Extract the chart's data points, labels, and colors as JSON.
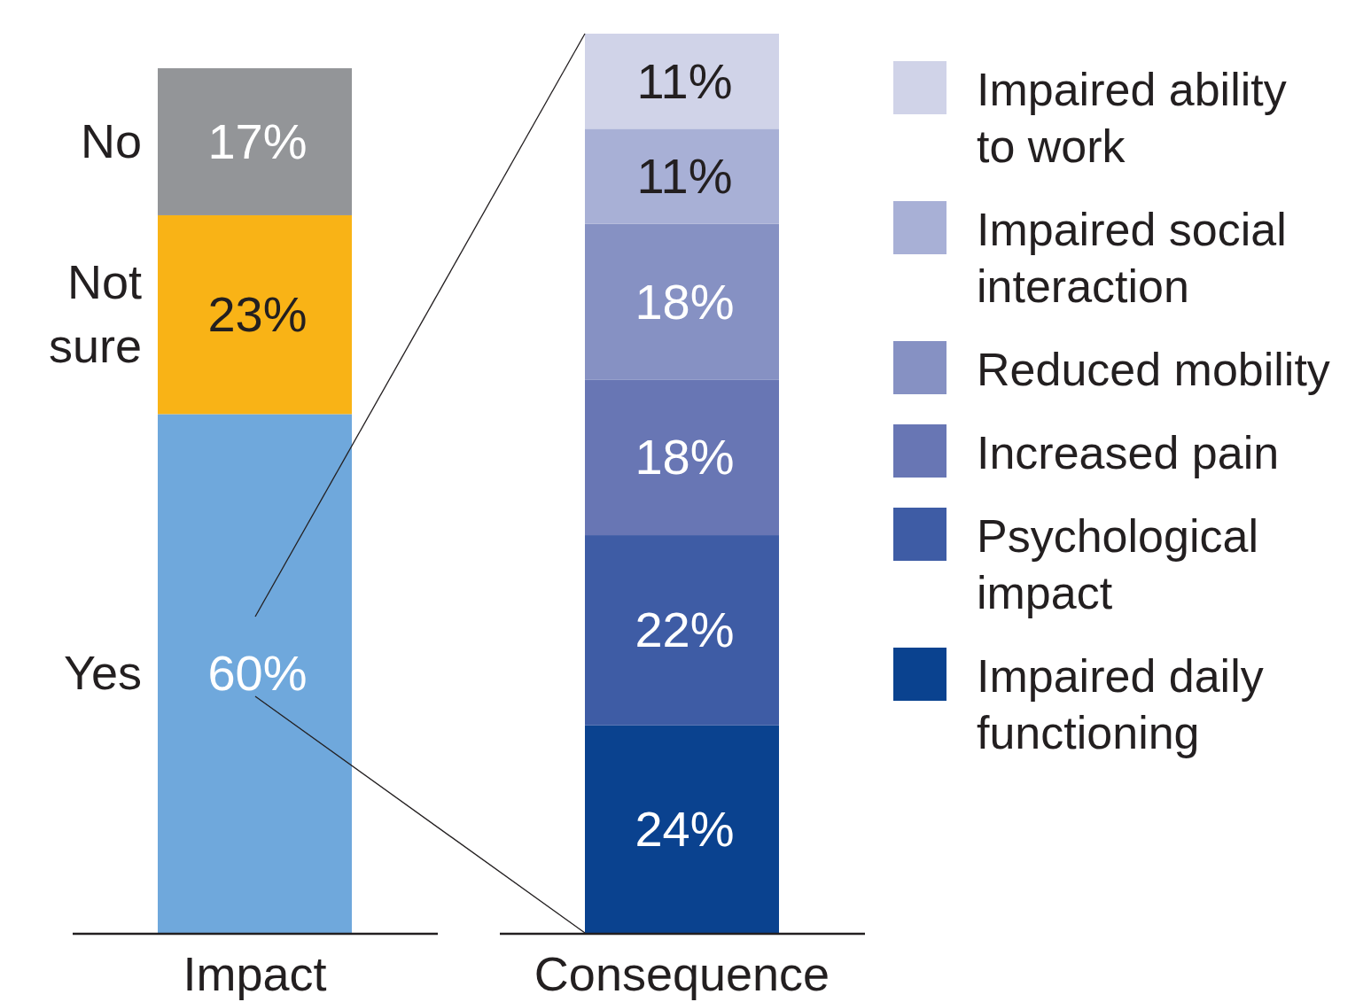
{
  "chart_data": {
    "type": "bar",
    "stacked": true,
    "categories": [
      "Impact",
      "Consequence"
    ],
    "legend": "right",
    "series": [
      {
        "name": "Yes",
        "color": "#6fa8dc",
        "values": [
          60,
          null
        ],
        "value_labels": [
          "60%",
          null
        ]
      },
      {
        "name": "Not sure",
        "color": "#f9b316",
        "values": [
          23,
          null
        ],
        "value_labels": [
          "23%",
          null
        ]
      },
      {
        "name": "No",
        "color": "#939598",
        "values": [
          17,
          null
        ],
        "value_labels": [
          "17%",
          null
        ]
      },
      {
        "name": "Impaired daily functioning",
        "color": "#0a428f",
        "values": [
          null,
          24
        ],
        "value_labels": [
          null,
          "24%"
        ]
      },
      {
        "name": "Psychological impact",
        "color": "#3e5ca5",
        "values": [
          null,
          22
        ],
        "value_labels": [
          null,
          "22%"
        ]
      },
      {
        "name": "Increased pain",
        "color": "#6876b4",
        "values": [
          null,
          18
        ],
        "value_labels": [
          null,
          "18%"
        ]
      },
      {
        "name": "Reduced mobility",
        "color": "#8691c3",
        "values": [
          null,
          18
        ],
        "value_labels": [
          null,
          "18%"
        ]
      },
      {
        "name": "Impaired social interaction",
        "color": "#a8b0d6",
        "values": [
          null,
          11
        ],
        "value_labels": [
          null,
          "11%"
        ]
      },
      {
        "name": "Impaired ability to work",
        "color": "#d0d3e8",
        "values": [
          null,
          11
        ],
        "value_labels": [
          null,
          "11%"
        ]
      }
    ]
  }
}
